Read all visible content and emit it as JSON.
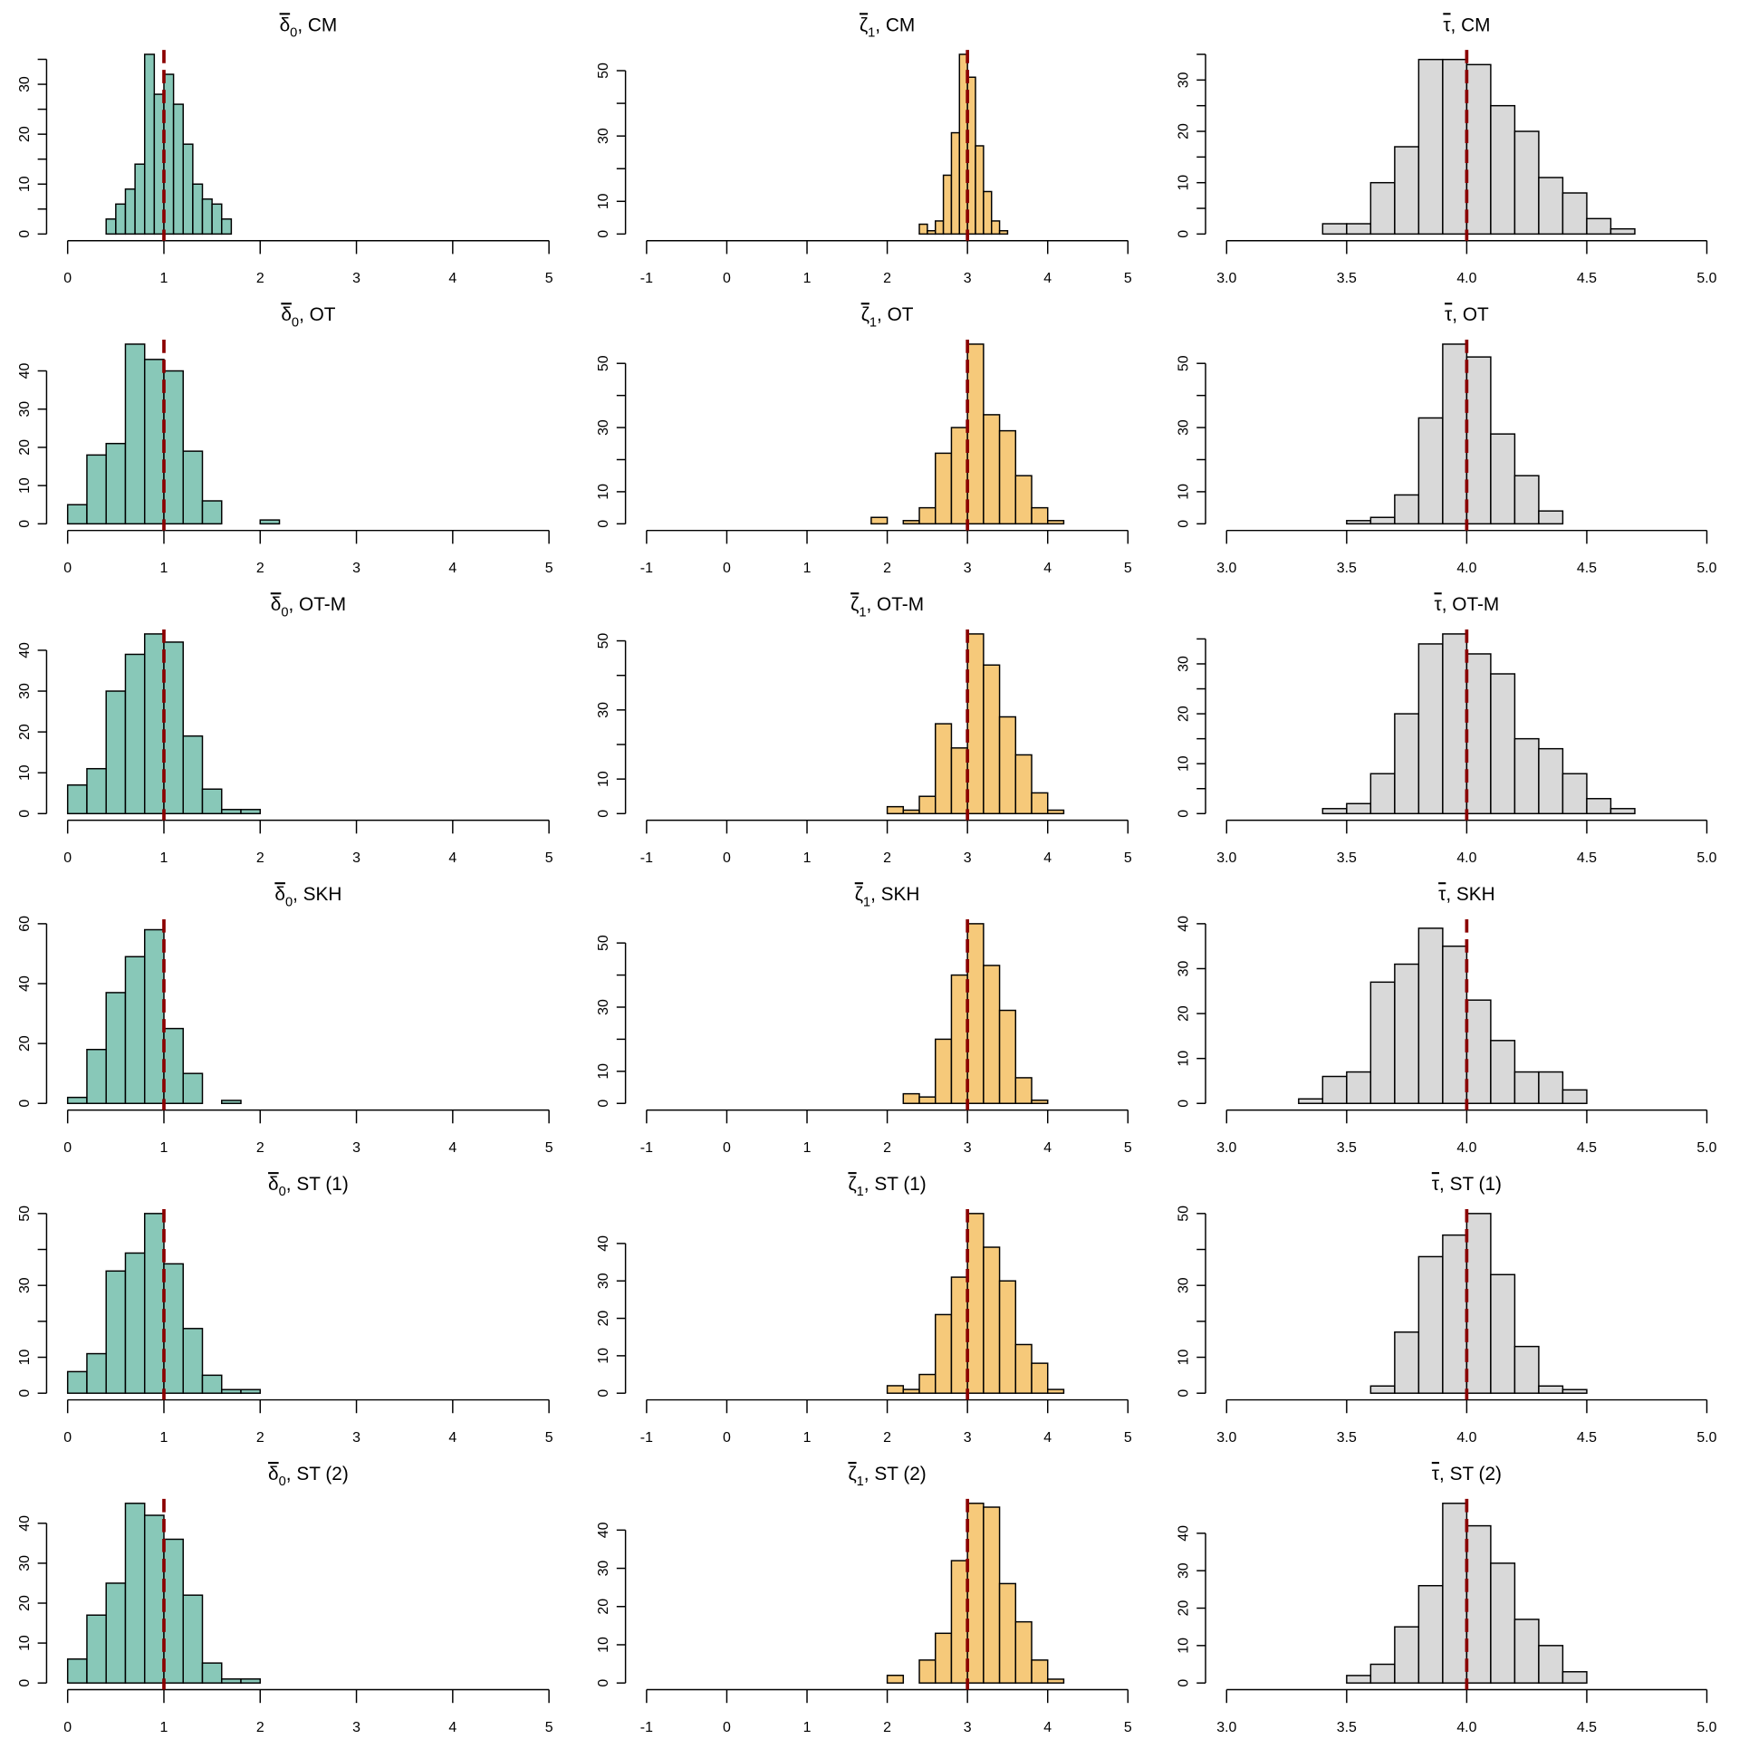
{
  "colors": {
    "delta": "#88c8b8",
    "xi": "#f6c97a",
    "tau": "#d9d9d9",
    "truth": "#8b0000"
  },
  "chart_data": [
    {
      "type": "bar",
      "title": {
        "sym": "δ",
        "sub": "0",
        "method": ", CM"
      },
      "x_start": 0.4,
      "bin_width": 0.1,
      "values": [
        3,
        6,
        9,
        14,
        36,
        28,
        32,
        26,
        18,
        10,
        7,
        6,
        3
      ],
      "xlim": [
        0,
        5
      ],
      "xticks": [
        0,
        1,
        2,
        3,
        4,
        5
      ],
      "xticklabels": [
        "0",
        "1",
        "2",
        "3",
        "4",
        "5"
      ],
      "ymax": 36,
      "yticks": [
        0,
        5,
        10,
        15,
        20,
        25,
        30,
        35
      ],
      "ylabels": [
        "0",
        "10",
        "20",
        "30"
      ],
      "truth": 1,
      "color": "delta"
    },
    {
      "type": "bar",
      "title": {
        "sym": "ζ",
        "sub": "1",
        "method": ", CM"
      },
      "x_start": 2.4,
      "bin_width": 0.1,
      "values": [
        3,
        1,
        4,
        18,
        31,
        55,
        48,
        27,
        13,
        4,
        1
      ],
      "xlim": [
        -1,
        5
      ],
      "xticks": [
        -1,
        0,
        1,
        2,
        3,
        4,
        5
      ],
      "xticklabels": [
        "-1",
        "0",
        "1",
        "2",
        "3",
        "4",
        "5"
      ],
      "ymax": 55,
      "yticks": [
        0,
        10,
        20,
        30,
        40,
        50
      ],
      "ylabels": [
        "0",
        "10",
        "30",
        "50"
      ],
      "truth": 3,
      "color": "xi"
    },
    {
      "type": "bar",
      "title": {
        "sym": "τ",
        "sub": "",
        "method": ", CM"
      },
      "x_start": 3.4,
      "bin_width": 0.1,
      "values": [
        2,
        2,
        10,
        17,
        34,
        34,
        33,
        25,
        20,
        11,
        8,
        3,
        1
      ],
      "xlim": [
        3,
        5
      ],
      "xticks": [
        3,
        3.5,
        4,
        4.5,
        5
      ],
      "xticklabels": [
        "3.0",
        "3.5",
        "4.0",
        "4.5",
        "5.0"
      ],
      "ymax": 35,
      "yticks": [
        0,
        5,
        10,
        15,
        20,
        25,
        30,
        35
      ],
      "ylabels": [
        "0",
        "10",
        "20",
        "30"
      ],
      "truth": 4,
      "color": "tau"
    },
    {
      "type": "bar",
      "title": {
        "sym": "δ",
        "sub": "0",
        "method": ", OT"
      },
      "x_start": 0,
      "bin_width": 0.2,
      "values": [
        5,
        18,
        21,
        47,
        43,
        40,
        19,
        6,
        0,
        0,
        1
      ],
      "xlim": [
        0,
        5
      ],
      "xticks": [
        0,
        1,
        2,
        3,
        4,
        5
      ],
      "xticklabels": [
        "0",
        "1",
        "2",
        "3",
        "4",
        "5"
      ],
      "ymax": 47,
      "yticks": [
        0,
        10,
        20,
        30,
        40
      ],
      "ylabels": [
        "0",
        "10",
        "20",
        "30",
        "40"
      ],
      "truth": 1,
      "color": "delta"
    },
    {
      "type": "bar",
      "title": {
        "sym": "ζ",
        "sub": "1",
        "method": ", OT"
      },
      "x_start": 1.8,
      "bin_width": 0.2,
      "values": [
        2,
        0,
        1,
        5,
        22,
        30,
        56,
        34,
        29,
        15,
        5,
        1
      ],
      "xlim": [
        -1,
        5
      ],
      "xticks": [
        -1,
        0,
        1,
        2,
        3,
        4,
        5
      ],
      "xticklabels": [
        "-1",
        "0",
        "1",
        "2",
        "3",
        "4",
        "5"
      ],
      "ymax": 56,
      "yticks": [
        0,
        10,
        20,
        30,
        40,
        50
      ],
      "ylabels": [
        "0",
        "10",
        "30",
        "50"
      ],
      "truth": 3,
      "color": "xi"
    },
    {
      "type": "bar",
      "title": {
        "sym": "τ",
        "sub": "",
        "method": ", OT"
      },
      "x_start": 3.5,
      "bin_width": 0.1,
      "values": [
        1,
        2,
        9,
        33,
        56,
        52,
        28,
        15,
        4
      ],
      "xlim": [
        3,
        5
      ],
      "xticks": [
        3,
        3.5,
        4,
        4.5,
        5
      ],
      "xticklabels": [
        "3.0",
        "3.5",
        "4.0",
        "4.5",
        "5.0"
      ],
      "ymax": 56,
      "yticks": [
        0,
        10,
        20,
        30,
        40,
        50
      ],
      "ylabels": [
        "0",
        "10",
        "30",
        "50"
      ],
      "truth": 4,
      "color": "tau"
    },
    {
      "type": "bar",
      "title": {
        "sym": "δ",
        "sub": "0",
        "method": ", OT-M"
      },
      "x_start": 0,
      "bin_width": 0.2,
      "values": [
        7,
        11,
        30,
        39,
        44,
        42,
        19,
        6,
        1,
        1
      ],
      "xlim": [
        0,
        5
      ],
      "xticks": [
        0,
        1,
        2,
        3,
        4,
        5
      ],
      "xticklabels": [
        "0",
        "1",
        "2",
        "3",
        "4",
        "5"
      ],
      "ymax": 44,
      "yticks": [
        0,
        10,
        20,
        30,
        40
      ],
      "ylabels": [
        "0",
        "10",
        "20",
        "30",
        "40"
      ],
      "truth": 1,
      "color": "delta"
    },
    {
      "type": "bar",
      "title": {
        "sym": "ζ",
        "sub": "1",
        "method": ", OT-M"
      },
      "x_start": 2.0,
      "bin_width": 0.2,
      "values": [
        2,
        1,
        5,
        26,
        19,
        52,
        43,
        28,
        17,
        6,
        1
      ],
      "xlim": [
        -1,
        5
      ],
      "xticks": [
        -1,
        0,
        1,
        2,
        3,
        4,
        5
      ],
      "xticklabels": [
        "-1",
        "0",
        "1",
        "2",
        "3",
        "4",
        "5"
      ],
      "ymax": 52,
      "yticks": [
        0,
        10,
        20,
        30,
        40,
        50
      ],
      "ylabels": [
        "0",
        "10",
        "30",
        "50"
      ],
      "truth": 3,
      "color": "xi"
    },
    {
      "type": "bar",
      "title": {
        "sym": "τ",
        "sub": "",
        "method": ", OT-M"
      },
      "x_start": 3.4,
      "bin_width": 0.1,
      "values": [
        1,
        2,
        8,
        20,
        34,
        36,
        32,
        28,
        15,
        13,
        8,
        3,
        1
      ],
      "xlim": [
        3,
        5
      ],
      "xticks": [
        3,
        3.5,
        4,
        4.5,
        5
      ],
      "xticklabels": [
        "3.0",
        "3.5",
        "4.0",
        "4.5",
        "5.0"
      ],
      "ymax": 36,
      "yticks": [
        0,
        5,
        10,
        15,
        20,
        25,
        30,
        35
      ],
      "ylabels": [
        "0",
        "10",
        "20",
        "30"
      ],
      "truth": 4,
      "color": "tau"
    },
    {
      "type": "bar",
      "title": {
        "sym": "δ",
        "sub": "0",
        "method": ", SKH"
      },
      "x_start": 0,
      "bin_width": 0.2,
      "values": [
        2,
        18,
        37,
        49,
        58,
        25,
        10,
        0,
        1
      ],
      "xlim": [
        0,
        5
      ],
      "xticks": [
        0,
        1,
        2,
        3,
        4,
        5
      ],
      "xticklabels": [
        "0",
        "1",
        "2",
        "3",
        "4",
        "5"
      ],
      "ymax": 60,
      "yticks": [
        0,
        20,
        40,
        60
      ],
      "ylabels": [
        "0",
        "20",
        "40",
        "60"
      ],
      "truth": 1,
      "color": "delta"
    },
    {
      "type": "bar",
      "title": {
        "sym": "ζ",
        "sub": "1",
        "method": ", SKH"
      },
      "x_start": 2.2,
      "bin_width": 0.2,
      "values": [
        3,
        2,
        20,
        40,
        56,
        43,
        29,
        8,
        1
      ],
      "xlim": [
        -1,
        5
      ],
      "xticks": [
        -1,
        0,
        1,
        2,
        3,
        4,
        5
      ],
      "xticklabels": [
        "-1",
        "0",
        "1",
        "2",
        "3",
        "4",
        "5"
      ],
      "ymax": 56,
      "yticks": [
        0,
        10,
        20,
        30,
        40,
        50
      ],
      "ylabels": [
        "0",
        "10",
        "30",
        "50"
      ],
      "truth": 3,
      "color": "xi"
    },
    {
      "type": "bar",
      "title": {
        "sym": "τ",
        "sub": "",
        "method": ", SKH"
      },
      "x_start": 3.3,
      "bin_width": 0.1,
      "values": [
        1,
        6,
        7,
        27,
        31,
        39,
        35,
        23,
        14,
        7,
        7,
        3
      ],
      "xlim": [
        3,
        5
      ],
      "xticks": [
        3,
        3.5,
        4,
        4.5,
        5
      ],
      "xticklabels": [
        "3.0",
        "3.5",
        "4.0",
        "4.5",
        "5.0"
      ],
      "ymax": 40,
      "yticks": [
        0,
        10,
        20,
        30,
        40
      ],
      "ylabels": [
        "0",
        "10",
        "20",
        "30",
        "40"
      ],
      "truth": 4,
      "color": "tau"
    },
    {
      "type": "bar",
      "title": {
        "sym": "δ",
        "sub": "0",
        "method": ", ST (1)"
      },
      "x_start": 0,
      "bin_width": 0.2,
      "values": [
        6,
        11,
        34,
        39,
        50,
        36,
        18,
        5,
        1,
        1
      ],
      "xlim": [
        0,
        5
      ],
      "xticks": [
        0,
        1,
        2,
        3,
        4,
        5
      ],
      "xticklabels": [
        "0",
        "1",
        "2",
        "3",
        "4",
        "5"
      ],
      "ymax": 50,
      "yticks": [
        0,
        10,
        20,
        30,
        40,
        50
      ],
      "ylabels": [
        "0",
        "10",
        "30",
        "50"
      ],
      "truth": 1,
      "color": "delta"
    },
    {
      "type": "bar",
      "title": {
        "sym": "ζ",
        "sub": "1",
        "method": ", ST (1)"
      },
      "x_start": 2.0,
      "bin_width": 0.2,
      "values": [
        2,
        1,
        5,
        21,
        31,
        48,
        39,
        30,
        13,
        8,
        1
      ],
      "xlim": [
        -1,
        5
      ],
      "xticks": [
        -1,
        0,
        1,
        2,
        3,
        4,
        5
      ],
      "xticklabels": [
        "-1",
        "0",
        "1",
        "2",
        "3",
        "4",
        "5"
      ],
      "ymax": 48,
      "yticks": [
        0,
        10,
        20,
        30,
        40
      ],
      "ylabels": [
        "0",
        "10",
        "20",
        "30",
        "40"
      ],
      "truth": 3,
      "color": "xi"
    },
    {
      "type": "bar",
      "title": {
        "sym": "τ",
        "sub": "",
        "method": ", ST (1)"
      },
      "x_start": 3.6,
      "bin_width": 0.1,
      "values": [
        2,
        17,
        38,
        44,
        50,
        33,
        13,
        2,
        1
      ],
      "xlim": [
        3,
        5
      ],
      "xticks": [
        3,
        3.5,
        4,
        4.5,
        5
      ],
      "xticklabels": [
        "3.0",
        "3.5",
        "4.0",
        "4.5",
        "5.0"
      ],
      "ymax": 50,
      "yticks": [
        0,
        10,
        20,
        30,
        40,
        50
      ],
      "ylabels": [
        "0",
        "10",
        "30",
        "50"
      ],
      "truth": 4,
      "color": "tau"
    },
    {
      "type": "bar",
      "title": {
        "sym": "δ",
        "sub": "0",
        "method": ", ST (2)"
      },
      "x_start": 0,
      "bin_width": 0.2,
      "values": [
        6,
        17,
        25,
        45,
        42,
        36,
        22,
        5,
        1,
        1
      ],
      "xlim": [
        0,
        5
      ],
      "xticks": [
        0,
        1,
        2,
        3,
        4,
        5
      ],
      "xticklabels": [
        "0",
        "1",
        "2",
        "3",
        "4",
        "5"
      ],
      "ymax": 45,
      "yticks": [
        0,
        10,
        20,
        30,
        40
      ],
      "ylabels": [
        "0",
        "10",
        "20",
        "30",
        "40"
      ],
      "truth": 1,
      "color": "delta"
    },
    {
      "type": "bar",
      "title": {
        "sym": "ζ",
        "sub": "1",
        "method": ", ST (2)"
      },
      "x_start": 2.0,
      "bin_width": 0.2,
      "values": [
        2,
        0,
        6,
        13,
        32,
        47,
        46,
        26,
        16,
        6,
        1
      ],
      "xlim": [
        -1,
        5
      ],
      "xticks": [
        -1,
        0,
        1,
        2,
        3,
        4,
        5
      ],
      "xticklabels": [
        "-1",
        "0",
        "1",
        "2",
        "3",
        "4",
        "5"
      ],
      "ymax": 47,
      "yticks": [
        0,
        10,
        20,
        30,
        40
      ],
      "ylabels": [
        "0",
        "10",
        "20",
        "30",
        "40"
      ],
      "truth": 3,
      "color": "xi"
    },
    {
      "type": "bar",
      "title": {
        "sym": "τ",
        "sub": "",
        "method": ", ST (2)"
      },
      "x_start": 3.5,
      "bin_width": 0.1,
      "values": [
        2,
        5,
        15,
        26,
        48,
        42,
        32,
        17,
        10,
        3
      ],
      "xlim": [
        3,
        5
      ],
      "xticks": [
        3,
        3.5,
        4,
        4.5,
        5
      ],
      "xticklabels": [
        "3.0",
        "3.5",
        "4.0",
        "4.5",
        "5.0"
      ],
      "ymax": 48,
      "yticks": [
        0,
        10,
        20,
        30,
        40
      ],
      "ylabels": [
        "0",
        "10",
        "20",
        "30",
        "40"
      ],
      "truth": 4,
      "color": "tau"
    }
  ]
}
